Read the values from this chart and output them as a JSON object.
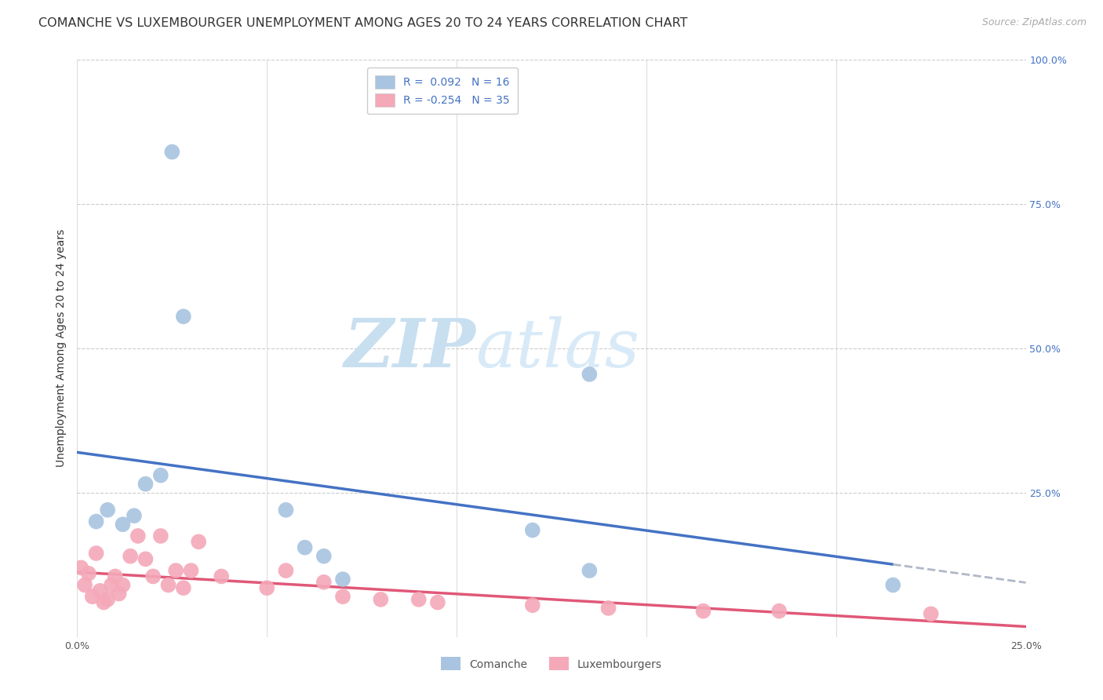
{
  "title": "COMANCHE VS LUXEMBOURGER UNEMPLOYMENT AMONG AGES 20 TO 24 YEARS CORRELATION CHART",
  "source": "Source: ZipAtlas.com",
  "ylabel": "Unemployment Among Ages 20 to 24 years",
  "xlim": [
    0.0,
    0.25
  ],
  "ylim": [
    0.0,
    1.0
  ],
  "xticks": [
    0.0,
    0.05,
    0.1,
    0.15,
    0.2,
    0.25
  ],
  "yticks": [
    0.0,
    0.25,
    0.5,
    0.75,
    1.0
  ],
  "comanche_R": "0.092",
  "comanche_N": "16",
  "luxembourger_R": "-0.254",
  "luxembourger_N": "35",
  "comanche_color": "#a8c4e0",
  "luxembourger_color": "#f4a8b8",
  "comanche_line_color": "#4472c4",
  "luxembourger_line_color": "#e05878",
  "trend_extension_color": "#b0b8c8",
  "comanche_x": [
    0.005,
    0.008,
    0.012,
    0.015,
    0.018,
    0.022,
    0.025,
    0.028,
    0.055,
    0.06,
    0.065,
    0.07,
    0.12,
    0.135,
    0.215,
    0.135
  ],
  "comanche_y": [
    0.2,
    0.22,
    0.195,
    0.21,
    0.265,
    0.28,
    0.84,
    0.555,
    0.22,
    0.155,
    0.14,
    0.1,
    0.185,
    0.115,
    0.09,
    0.455
  ],
  "luxembourger_x": [
    0.001,
    0.002,
    0.003,
    0.004,
    0.005,
    0.006,
    0.007,
    0.008,
    0.009,
    0.01,
    0.011,
    0.012,
    0.014,
    0.016,
    0.018,
    0.02,
    0.022,
    0.024,
    0.026,
    0.028,
    0.03,
    0.032,
    0.038,
    0.05,
    0.055,
    0.065,
    0.07,
    0.08,
    0.09,
    0.095,
    0.12,
    0.14,
    0.165,
    0.185,
    0.225
  ],
  "luxembourger_y": [
    0.12,
    0.09,
    0.11,
    0.07,
    0.145,
    0.08,
    0.06,
    0.065,
    0.09,
    0.105,
    0.075,
    0.09,
    0.14,
    0.175,
    0.135,
    0.105,
    0.175,
    0.09,
    0.115,
    0.085,
    0.115,
    0.165,
    0.105,
    0.085,
    0.115,
    0.095,
    0.07,
    0.065,
    0.065,
    0.06,
    0.055,
    0.05,
    0.045,
    0.045,
    0.04
  ],
  "background_color": "#ffffff",
  "grid_color": "#cccccc",
  "watermark_zip_color": "#c8dff0",
  "watermark_atlas_color": "#c8dff0",
  "title_fontsize": 11.5,
  "axis_label_fontsize": 10,
  "tick_fontsize": 9,
  "legend_fontsize": 10,
  "source_fontsize": 9
}
